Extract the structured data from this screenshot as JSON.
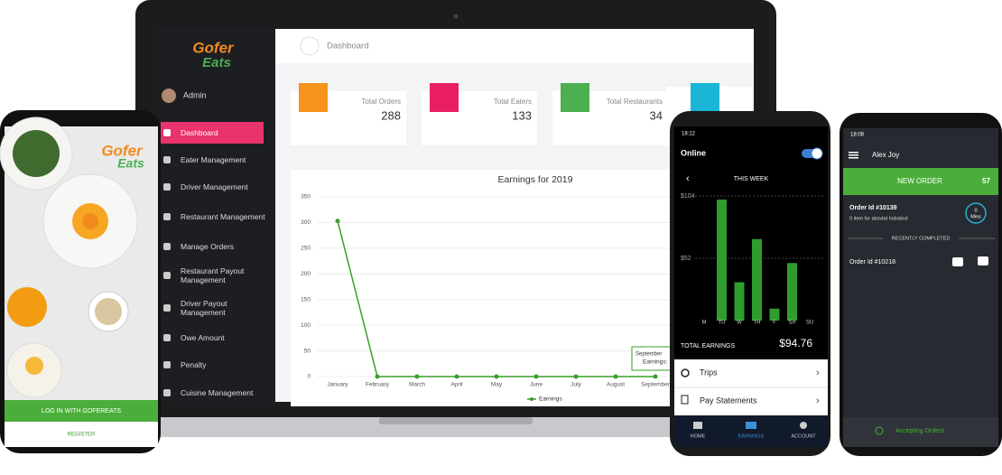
{
  "laptop": {
    "logo_top": "Gofer",
    "logo_bottom": "Eats",
    "user": "Admin",
    "menu": [
      "Dashboard",
      "Eater Management",
      "Driver Management",
      "Restaurant Management",
      "Manage Orders",
      "Restaurant Payout Management",
      "Driver Payout Management",
      "Owe Amount",
      "Penalty",
      "Cuisine Management"
    ],
    "header": "Dashboard",
    "stats": [
      {
        "label": "Total Orders",
        "value": 288
      },
      {
        "label": "Total Eaters",
        "value": 133
      },
      {
        "label": "Total Restaurants",
        "value": 34
      }
    ],
    "tooltip": {
      "title": "September",
      "label": "Earnings:"
    }
  },
  "chart_data": [
    {
      "type": "line",
      "title": "Earnings for 2019",
      "categories": [
        "January",
        "February",
        "March",
        "April",
        "May",
        "June",
        "July",
        "August",
        "September"
      ],
      "series": [
        {
          "name": "Earnings",
          "color": "#3a9e2a",
          "values": [
            303,
            0,
            0,
            0,
            0,
            0,
            0,
            0,
            0
          ]
        }
      ],
      "ylim": [
        0,
        350
      ],
      "yticks": [
        0,
        50,
        100,
        150,
        200,
        250,
        300,
        350
      ],
      "grid": true,
      "legend": "bottom"
    },
    {
      "type": "bar",
      "categories": [
        "M",
        "TU",
        "W",
        "TH",
        "F",
        "SA",
        "SU"
      ],
      "values": [
        0,
        101,
        32,
        68,
        10,
        48,
        0
      ],
      "color": "#2e9d2e",
      "ylim": [
        0,
        104
      ],
      "yticks": [
        {
          "value": 104,
          "label": "$104"
        },
        {
          "value": 52,
          "label": "$52"
        }
      ],
      "grid": true
    }
  ],
  "phone_login": {
    "login": "LOG IN WITH GOFEREATS",
    "register": "REGISTER"
  },
  "phone_driver": {
    "time": "18:12",
    "status": "Online",
    "period": "THIS WEEK",
    "total_label": "TOTAL EARNINGS",
    "total": "$94.76",
    "links": [
      "Trips",
      "Pay Statements"
    ],
    "tabs": [
      "HOME",
      "EARNINGS",
      "ACCOUNT"
    ]
  },
  "phone_restaurant": {
    "time": "18:08",
    "name": "Alex Joy",
    "new_order": "NEW ORDER",
    "count": 57,
    "order_id": "Order Id #10139",
    "order_items": "0 item for absvbd hsbsbnd",
    "timer_value": 0,
    "timer_unit": "Mins",
    "section": "RECENTLY COMPLETED",
    "completed": "Order Id #10218",
    "footer": "Accepting Orders"
  }
}
